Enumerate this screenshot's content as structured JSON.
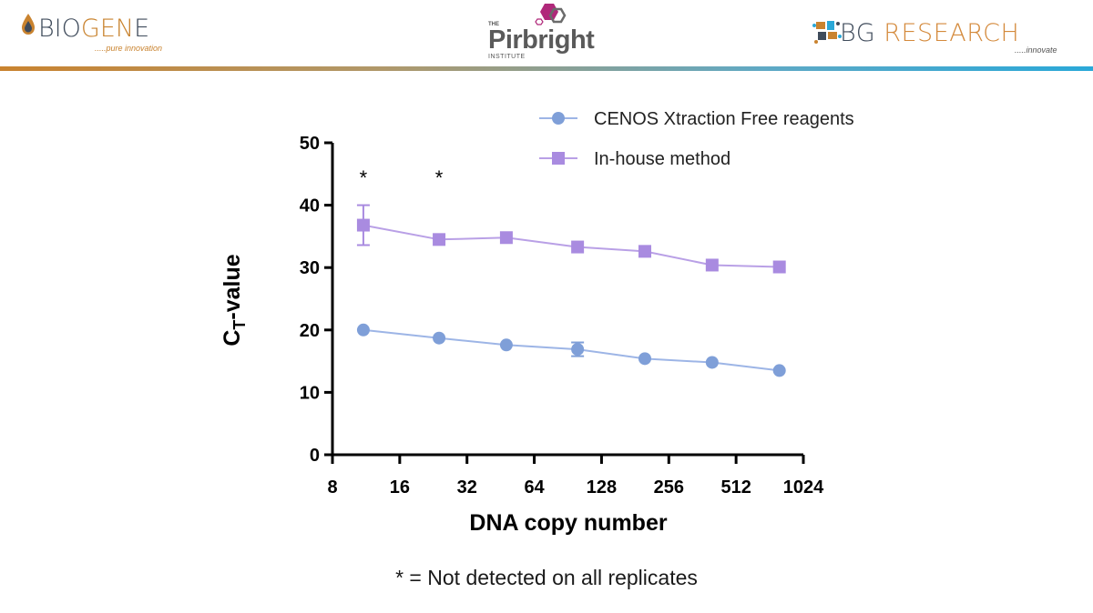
{
  "header": {
    "biogene": {
      "name_dark_1": "BIO",
      "name_orange": "GEN",
      "name_dark_2": "E",
      "tagline": ".....pure innovation"
    },
    "pirbright": {
      "the": "THE",
      "name": "Pirbright",
      "institute": "INSTITUTE"
    },
    "bgresearch": {
      "name_dark": "BG",
      "name_orange": "RESEARCH",
      "tagline": ".....innovate"
    },
    "colors": {
      "orange": "#c9832f",
      "dark": "#3f4b5b",
      "blue": "#2aa8d8",
      "pirbright_hex": "#b0287a"
    }
  },
  "chart_data": {
    "type": "line",
    "title": "",
    "xlabel": "DNA copy number",
    "ylabel_main": "C",
    "ylabel_sub": "T",
    "ylabel_rest": "-value",
    "x_scale": "log2",
    "xlim": [
      8,
      1024
    ],
    "ylim": [
      0,
      50
    ],
    "x_ticks": [
      8,
      16,
      32,
      64,
      128,
      256,
      512,
      1024
    ],
    "x_tick_labels": [
      "8",
      "16",
      "32",
      "64",
      "128",
      "256",
      "512",
      "1024"
    ],
    "y_ticks": [
      0,
      10,
      20,
      30,
      40,
      50
    ],
    "y_tick_labels": [
      "0",
      "10",
      "20",
      "30",
      "40",
      "50"
    ],
    "x": [
      11,
      24,
      48,
      100,
      200,
      400,
      800
    ],
    "series": [
      {
        "name": "CENOS Xtraction Free reagents",
        "marker": "circle",
        "color": "#7f9fd8",
        "line_color": "#9db5e6",
        "values": [
          20.0,
          18.7,
          17.6,
          16.9,
          15.4,
          14.8,
          13.5
        ],
        "error": [
          0,
          0,
          0,
          1.1,
          0,
          0,
          0
        ]
      },
      {
        "name": "In-house method",
        "marker": "square",
        "color": "#a98be0",
        "line_color": "#b9a0e6",
        "values": [
          36.8,
          34.5,
          34.8,
          33.3,
          32.6,
          30.4,
          30.1
        ],
        "error": [
          3.2,
          0,
          0,
          0,
          0,
          0,
          0
        ]
      }
    ],
    "annotations": [
      {
        "x": 11,
        "text": "*"
      },
      {
        "x": 24,
        "text": "*"
      }
    ],
    "legend_position": "top-right",
    "grid": false
  },
  "footnote": "* = Not detected on all replicates"
}
